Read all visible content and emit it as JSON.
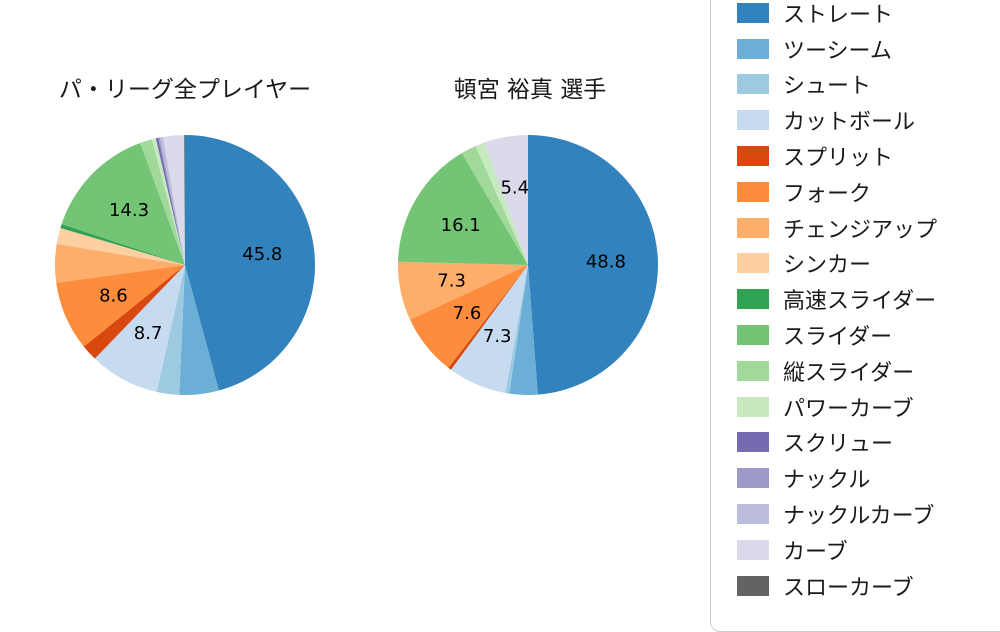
{
  "chart_data": [
    {
      "type": "pie",
      "title": "パ・リーグ全プレイヤー",
      "start_angle": 90,
      "direction": "clockwise",
      "label_min_percent": 5,
      "labeled_values_shown": [
        45.8,
        8.7,
        8.6,
        14.3
      ],
      "categories": [
        "ストレート",
        "ツーシーム",
        "シュート",
        "カットボール",
        "スプリット",
        "フォーク",
        "チェンジアップ",
        "シンカー",
        "高速スライダー",
        "スライダー",
        "縦スライダー",
        "パワーカーブ",
        "スクリュー",
        "ナックル",
        "ナックルカーブ",
        "カーブ",
        "スローカーブ"
      ],
      "values": [
        45.8,
        4.9,
        2.8,
        8.7,
        2.0,
        8.6,
        4.8,
        2.0,
        0.5,
        14.3,
        1.5,
        0.5,
        0.3,
        0.2,
        0.4,
        2.6,
        0.1
      ],
      "colors": [
        "#3182bd",
        "#6baed6",
        "#9ecae1",
        "#c6dbef",
        "#d9480f",
        "#fd8d3c",
        "#fdae6b",
        "#fdd0a2",
        "#31a354",
        "#74c476",
        "#a1d99b",
        "#c7e9c0",
        "#756bb1",
        "#9e9ac8",
        "#bcbddc",
        "#dadaeb",
        "#636363"
      ]
    },
    {
      "type": "pie",
      "title": "頓宮 裕真 選手",
      "start_angle": 90,
      "direction": "clockwise",
      "label_min_percent": 5,
      "labeled_values_shown": [
        48.8,
        7.3,
        7.6,
        7.3,
        16.1,
        5.4
      ],
      "categories": [
        "ストレート",
        "ツーシーム",
        "シュート",
        "カットボール",
        "スプリット",
        "フォーク",
        "チェンジアップ",
        "シンカー",
        "高速スライダー",
        "スライダー",
        "縦スライダー",
        "パワーカーブ",
        "スクリュー",
        "ナックル",
        "ナックルカーブ",
        "カーブ",
        "スローカーブ"
      ],
      "values": [
        48.8,
        3.5,
        0.5,
        7.3,
        0.4,
        7.6,
        7.3,
        0.0,
        0.0,
        16.1,
        1.9,
        1.2,
        0.0,
        0.0,
        0.0,
        5.4,
        0.0
      ],
      "colors": [
        "#3182bd",
        "#6baed6",
        "#9ecae1",
        "#c6dbef",
        "#d9480f",
        "#fd8d3c",
        "#fdae6b",
        "#fdd0a2",
        "#31a354",
        "#74c476",
        "#a1d99b",
        "#c7e9c0",
        "#756bb1",
        "#9e9ac8",
        "#bcbddc",
        "#dadaeb",
        "#636363"
      ]
    }
  ],
  "legend": {
    "position": "right",
    "items": [
      {
        "label": "ストレート",
        "color": "#3182bd"
      },
      {
        "label": "ツーシーム",
        "color": "#6baed6"
      },
      {
        "label": "シュート",
        "color": "#9ecae1"
      },
      {
        "label": "カットボール",
        "color": "#c6dbef"
      },
      {
        "label": "スプリット",
        "color": "#d9480f"
      },
      {
        "label": "フォーク",
        "color": "#fd8d3c"
      },
      {
        "label": "チェンジアップ",
        "color": "#fdae6b"
      },
      {
        "label": "シンカー",
        "color": "#fdd0a2"
      },
      {
        "label": "高速スライダー",
        "color": "#31a354"
      },
      {
        "label": "スライダー",
        "color": "#74c476"
      },
      {
        "label": "縦スライダー",
        "color": "#a1d99b"
      },
      {
        "label": "パワーカーブ",
        "color": "#c7e9c0"
      },
      {
        "label": "スクリュー",
        "color": "#756bb1"
      },
      {
        "label": "ナックル",
        "color": "#9e9ac8"
      },
      {
        "label": "ナックルカーブ",
        "color": "#bcbddc"
      },
      {
        "label": "カーブ",
        "color": "#dadaeb"
      },
      {
        "label": "スローカーブ",
        "color": "#636363"
      }
    ]
  }
}
